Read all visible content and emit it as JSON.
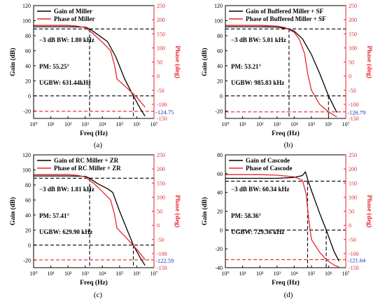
{
  "colors": {
    "gain": "#000000",
    "phase": "#e8252b",
    "phase_axis": "#e8252b",
    "readout": "#1f2fbf"
  },
  "chart_data": [
    {
      "type": "line",
      "panel_label": "(a)",
      "xlabel": "Freq (Hz)",
      "ylabel_left": "Gain (dB)",
      "ylabel_right": "Phase (deg)",
      "xscale": "log",
      "xlim": [
        1,
        10000000
      ],
      "ylim_left": [
        -30,
        120
      ],
      "ylim_right": [
        -150,
        250
      ],
      "x_ticks": [
        "10⁰",
        "10¹",
        "10²",
        "10³",
        "10⁴",
        "10⁵",
        "10⁶",
        "10⁷"
      ],
      "y_ticks_left": [
        -20,
        0,
        20,
        40,
        60,
        80,
        100,
        120
      ],
      "y_ticks_right": [
        -150,
        -100,
        -50,
        0,
        50,
        100,
        150,
        200,
        250
      ],
      "legend_position": "top-left",
      "series": [
        {
          "name": "Gain of Miller",
          "axis": "left",
          "x": [
            1,
            10,
            100,
            1000,
            1800,
            5000,
            20000,
            60000,
            200000,
            631440,
            1500000,
            3000000
          ],
          "y": [
            92,
            92,
            92,
            91.5,
            89,
            82,
            72,
            52,
            22,
            0,
            -16,
            -27
          ]
        },
        {
          "name": "Phase of Miller",
          "axis": "right",
          "x": [
            1,
            10,
            100,
            300,
            1000,
            3000,
            10000,
            30000,
            50000,
            70000,
            300000,
            1000000,
            3000000
          ],
          "y": [
            180,
            180,
            180,
            178,
            172,
            150,
            120,
            90,
            40,
            -10,
            -45,
            -75,
            -110
          ]
        }
      ],
      "annotations": [
        "−3 dB BW: 1.80 kHz",
        "PM: 55.25°",
        "UGBW: 631.44kHz"
      ],
      "phase_readout": "-124.75",
      "reference_lines": {
        "gain_dc_db": 92,
        "gain_zero_db": 0,
        "bw_hz": 1800,
        "ugbw_hz": 631440,
        "phase_deg": -124.75
      }
    },
    {
      "type": "line",
      "panel_label": "(b)",
      "xlabel": "Freq (Hz)",
      "ylabel_left": "Gain (dB)",
      "ylabel_right": "Phase (deg)",
      "xscale": "log",
      "xlim": [
        1,
        10000000
      ],
      "ylim_left": [
        -30,
        120
      ],
      "ylim_right": [
        -150,
        250
      ],
      "x_ticks": [
        "10⁰",
        "10¹",
        "10²",
        "10³",
        "10⁴",
        "10⁵",
        "10⁶",
        "10⁷"
      ],
      "y_ticks_left": [
        -20,
        0,
        20,
        40,
        60,
        80,
        100,
        120
      ],
      "y_ticks_right": [
        -150,
        -100,
        -50,
        0,
        50,
        100,
        150,
        200,
        250
      ],
      "legend_position": "top-left",
      "series": [
        {
          "name": "Gain of Buffered Miller + SF",
          "axis": "left",
          "x": [
            1,
            10,
            100,
            1000,
            5000,
            10000,
            30000,
            100000,
            300000,
            985830,
            2000000,
            3000000
          ],
          "y": [
            92,
            92,
            92,
            91.5,
            89,
            86,
            76,
            55,
            30,
            0,
            -14,
            -22
          ]
        },
        {
          "name": "Phase of Buffered Miller + SF",
          "axis": "right",
          "x": [
            1,
            10,
            100,
            1000,
            3000,
            10000,
            20000,
            40000,
            60000,
            100000,
            300000,
            1000000,
            3000000
          ],
          "y": [
            180,
            180,
            180,
            178,
            172,
            155,
            130,
            80,
            10,
            -50,
            -100,
            -127,
            -145
          ]
        }
      ],
      "annotations": [
        "−3 dB BW: 5.01 kHz",
        "PM: 53.21°",
        "UGBW: 985.83 kHz"
      ],
      "phase_readout": "-126.79",
      "reference_lines": {
        "gain_dc_db": 92,
        "gain_zero_db": 0,
        "bw_hz": 5010,
        "ugbw_hz": 985830,
        "phase_deg": -126.79
      }
    },
    {
      "type": "line",
      "panel_label": "(c)",
      "xlabel": "Freq (Hz)",
      "ylabel_left": "Gain (dB)",
      "ylabel_right": "Phase (deg)",
      "xscale": "log",
      "xlim": [
        1,
        10000000
      ],
      "ylim_left": [
        -30,
        120
      ],
      "ylim_right": [
        -150,
        250
      ],
      "x_ticks": [
        "10⁰",
        "10¹",
        "10²",
        "10³",
        "10⁴",
        "10⁵",
        "10⁶",
        "10⁷"
      ],
      "y_ticks_left": [
        -20,
        0,
        20,
        40,
        60,
        80,
        100,
        120
      ],
      "y_ticks_right": [
        -150,
        -100,
        -50,
        0,
        50,
        100,
        150,
        200,
        250
      ],
      "legend_position": "top-left",
      "series": [
        {
          "name": "Gain of RC Miller + ZR",
          "axis": "left",
          "x": [
            1,
            10,
            100,
            1000,
            1810,
            5000,
            20000,
            40000,
            100000,
            629900,
            1500000,
            3000000
          ],
          "y": [
            92,
            92,
            92,
            91.5,
            89,
            82,
            75,
            70,
            45,
            0,
            -16,
            -27
          ]
        },
        {
          "name": "Phase of RC Miller + ZR",
          "axis": "right",
          "x": [
            1,
            10,
            100,
            300,
            1000,
            3000,
            10000,
            30000,
            50000,
            70000,
            300000,
            1000000,
            3000000
          ],
          "y": [
            180,
            180,
            180,
            178,
            172,
            150,
            120,
            90,
            40,
            -10,
            -50,
            -85,
            -122
          ]
        }
      ],
      "annotations": [
        "−3 dB BW: 1.81 kHz",
        "PM: 57.41°",
        "UGBW: 629.90 kHz"
      ],
      "phase_readout": "-122.59",
      "reference_lines": {
        "gain_dc_db": 92,
        "gain_zero_db": 0,
        "bw_hz": 1810,
        "ugbw_hz": 629900,
        "phase_deg": -122.59
      }
    },
    {
      "type": "line",
      "panel_label": "(d)",
      "xlabel": "Freq (Hz)",
      "ylabel_left": "Gain (dB)",
      "ylabel_right": "Phase (deg)",
      "xscale": "log",
      "xlim": [
        1,
        10000000
      ],
      "ylim_left": [
        -40,
        80
      ],
      "ylim_right": [
        -150,
        250
      ],
      "x_ticks": [
        "10⁰",
        "10¹",
        "10²",
        "10³",
        "10⁴",
        "10⁵",
        "10⁶",
        "10⁷"
      ],
      "y_ticks_left": [
        -40,
        -20,
        0,
        20,
        40,
        60,
        80
      ],
      "y_ticks_right": [
        -150,
        -100,
        -50,
        0,
        50,
        100,
        150,
        200,
        250
      ],
      "legend_position": "top-left",
      "series": [
        {
          "name": "Gain of Cascode",
          "axis": "left",
          "x": [
            1,
            10,
            100,
            1000,
            10000,
            30000,
            45000,
            60340,
            100000,
            300000,
            729360,
            2000000,
            4000000
          ],
          "y": [
            55,
            55,
            55,
            55,
            56,
            58,
            62,
            54,
            42,
            18,
            0,
            -22,
            -33
          ]
        },
        {
          "name": "Phase of Cascode",
          "axis": "right",
          "x": [
            1,
            10,
            100,
            1000,
            10000,
            30000,
            50000,
            70000,
            100000,
            300000,
            729360,
            2000000,
            4000000
          ],
          "y": [
            180,
            180,
            180,
            178,
            172,
            160,
            110,
            20,
            -50,
            -95,
            -121.64,
            -140,
            -148
          ]
        }
      ],
      "annotations": [
        "−3 dB BW: 60.34 kHz",
        "PM: 58.36°",
        "UGBW: 729.36 kHz"
      ],
      "phase_readout": "-121.64",
      "reference_lines": {
        "gain_dc_db": 55,
        "gain_zero_db": 0,
        "bw_hz": 60340,
        "ugbw_hz": 729360,
        "phase_deg": -121.64
      }
    }
  ]
}
